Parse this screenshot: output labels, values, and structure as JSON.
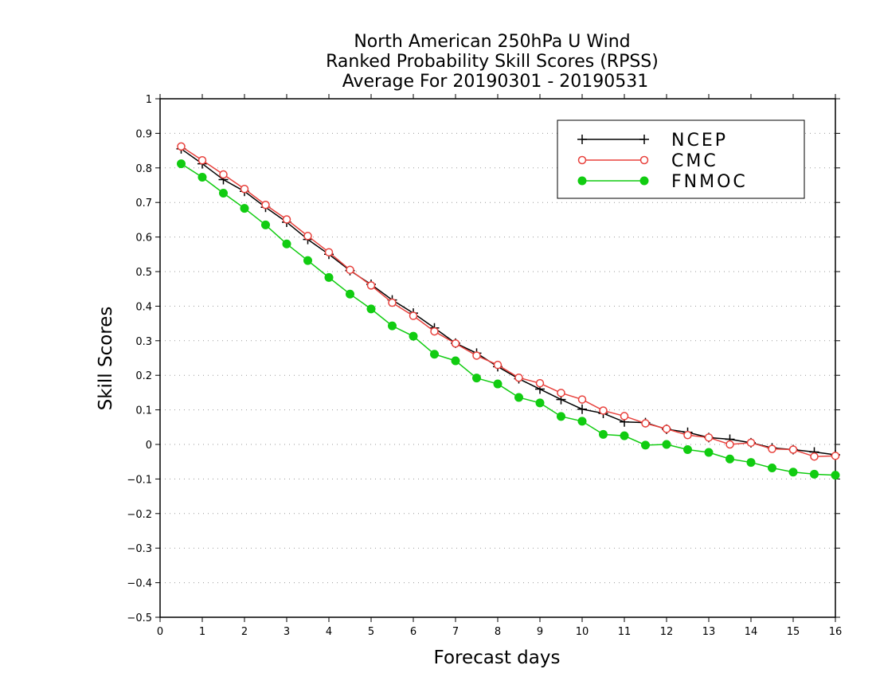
{
  "chart_data": {
    "type": "line",
    "title_lines": [
      "North American 250hPa U Wind",
      "Ranked Probability Skill Scores (RPSS)",
      "Average For 20190301 - 20190531"
    ],
    "xlabel": "Forecast days",
    "ylabel": "Skill Scores",
    "xlim": [
      0,
      16
    ],
    "ylim": [
      -0.5,
      1
    ],
    "x_ticks": [
      "0",
      "1",
      "2",
      "3",
      "4",
      "5",
      "6",
      "7",
      "8",
      "9",
      "10",
      "11",
      "12",
      "13",
      "14",
      "15",
      "16"
    ],
    "y_ticks": [
      "1",
      "0.9",
      "0.8",
      "0.7",
      "0.6",
      "0.5",
      "0.4",
      "0.3",
      "0.2",
      "0.1",
      "0",
      "−0.1",
      "−0.2",
      "−0.3",
      "−0.4",
      "−0.5"
    ],
    "grid": true,
    "legend_position": "top-right",
    "x": [
      0.5,
      1,
      1.5,
      2,
      2.5,
      3,
      3.5,
      4,
      4.5,
      5,
      5.5,
      6,
      6.5,
      7,
      7.5,
      8,
      8.5,
      9,
      9.5,
      10,
      10.5,
      11,
      11.5,
      12,
      12.5,
      13,
      13.5,
      14,
      14.5,
      15,
      15.5,
      16
    ],
    "series": [
      {
        "name": "NCEP",
        "color": "#000000",
        "marker": "plus",
        "values": [
          0.855,
          0.812,
          0.766,
          0.732,
          0.686,
          0.643,
          0.593,
          0.55,
          0.503,
          0.463,
          0.418,
          0.38,
          0.337,
          0.293,
          0.264,
          0.225,
          0.19,
          0.16,
          0.13,
          0.102,
          0.09,
          0.065,
          0.063,
          0.044,
          0.035,
          0.02,
          0.015,
          0.005,
          -0.01,
          -0.015,
          -0.022,
          -0.03
        ]
      },
      {
        "name": "CMC",
        "color": "#e8413c",
        "marker": "open-circle",
        "values": [
          0.862,
          0.822,
          0.781,
          0.739,
          0.693,
          0.651,
          0.603,
          0.556,
          0.505,
          0.46,
          0.41,
          0.372,
          0.327,
          0.292,
          0.257,
          0.23,
          0.193,
          0.177,
          0.149,
          0.13,
          0.098,
          0.082,
          0.061,
          0.045,
          0.027,
          0.02,
          0.0,
          0.005,
          -0.013,
          -0.015,
          -0.035,
          -0.033
        ]
      },
      {
        "name": "FNMOC",
        "color": "#11cc11",
        "marker": "filled-circle",
        "values": [
          0.812,
          0.773,
          0.727,
          0.683,
          0.635,
          0.58,
          0.532,
          0.483,
          0.435,
          0.392,
          0.343,
          0.313,
          0.261,
          0.242,
          0.192,
          0.175,
          0.136,
          0.12,
          0.081,
          0.067,
          0.029,
          0.025,
          -0.002,
          0.0,
          -0.015,
          -0.023,
          -0.042,
          -0.052,
          -0.068,
          -0.08,
          -0.086,
          -0.089
        ]
      }
    ]
  }
}
